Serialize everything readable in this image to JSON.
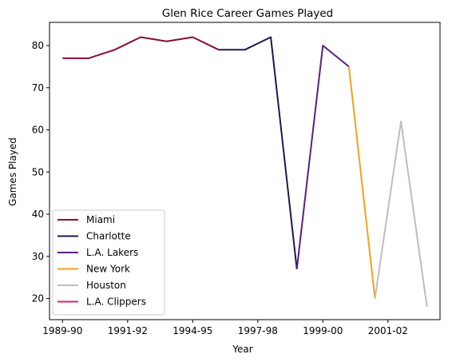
{
  "chart_data": {
    "type": "line",
    "title": "Glen Rice Career Games Played",
    "xlabel": "Year",
    "ylabel": "Games Played",
    "xlim": [
      -0.5,
      14.5
    ],
    "ylim": [
      15,
      85.5
    ],
    "grid": false,
    "legend_position": "lower-left",
    "x_ticks": [
      {
        "pos": 0,
        "label": "1989-90"
      },
      {
        "pos": 2.5,
        "label": "1991-92"
      },
      {
        "pos": 5,
        "label": "1994-95"
      },
      {
        "pos": 7.5,
        "label": "1997-98"
      },
      {
        "pos": 10,
        "label": "1999-00"
      },
      {
        "pos": 12.5,
        "label": "2001-02"
      }
    ],
    "y_ticks": [
      20,
      30,
      40,
      50,
      60,
      70,
      80
    ],
    "series": [
      {
        "name": "Miami",
        "color": "#8b0a3a",
        "points": [
          [
            0,
            77
          ],
          [
            1,
            77
          ],
          [
            2,
            79
          ],
          [
            3,
            82
          ],
          [
            4,
            81
          ],
          [
            5,
            82
          ],
          [
            6,
            79
          ]
        ]
      },
      {
        "name": "Charlotte",
        "color": "#1f1850",
        "points": [
          [
            6,
            79
          ],
          [
            7,
            79
          ],
          [
            8,
            82
          ],
          [
            9,
            27
          ]
        ]
      },
      {
        "name": "L.A. Lakers",
        "color": "#55217e",
        "points": [
          [
            9,
            27
          ],
          [
            10,
            80
          ],
          [
            11,
            75
          ]
        ]
      },
      {
        "name": "New York",
        "color": "#f5a11e",
        "points": [
          [
            11,
            75
          ],
          [
            12,
            20
          ]
        ]
      },
      {
        "name": "Houston",
        "color": "#bebebe",
        "points": [
          [
            12,
            20
          ],
          [
            13,
            62
          ],
          [
            14,
            18
          ]
        ]
      },
      {
        "name": "L.A. Clippers",
        "color": "#e11d5c",
        "points": []
      }
    ]
  }
}
